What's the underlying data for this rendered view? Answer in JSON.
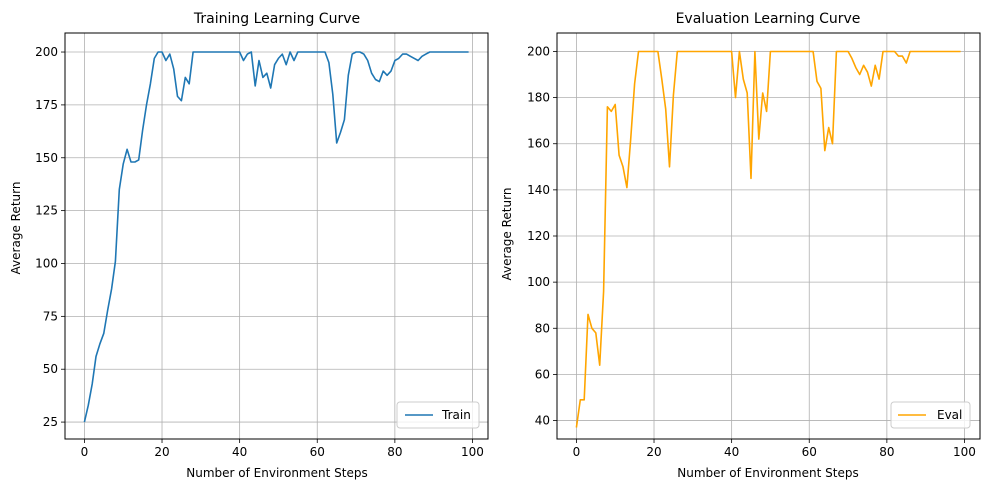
{
  "chart_data": [
    {
      "type": "line",
      "title": "Training Learning Curve",
      "xlabel": "Number of Environment Steps",
      "ylabel": "Average Return",
      "xlim": [
        -5,
        104
      ],
      "ylim": [
        17,
        209
      ],
      "xticks": [
        0,
        20,
        40,
        60,
        80,
        100
      ],
      "yticks": [
        25,
        50,
        75,
        100,
        125,
        150,
        175,
        200
      ],
      "grid": true,
      "legend_position": "lower-right",
      "series": [
        {
          "name": "Train",
          "color": "#1f77b4",
          "x": [
            0,
            1,
            2,
            3,
            4,
            5,
            6,
            7,
            8,
            9,
            10,
            11,
            12,
            13,
            14,
            15,
            16,
            17,
            18,
            19,
            20,
            21,
            22,
            23,
            24,
            25,
            26,
            27,
            28,
            29,
            30,
            31,
            32,
            33,
            34,
            35,
            36,
            37,
            38,
            39,
            40,
            41,
            42,
            43,
            44,
            45,
            46,
            47,
            48,
            49,
            50,
            51,
            52,
            53,
            54,
            55,
            56,
            57,
            58,
            59,
            60,
            61,
            62,
            63,
            64,
            65,
            66,
            67,
            68,
            69,
            70,
            71,
            72,
            73,
            74,
            75,
            76,
            77,
            78,
            79,
            80,
            81,
            82,
            83,
            84,
            85,
            86,
            87,
            88,
            89,
            90,
            91,
            92,
            93,
            94,
            95,
            96,
            97,
            98,
            99
          ],
          "values": [
            25,
            33,
            43,
            56,
            62,
            67,
            78,
            88,
            101,
            135,
            147,
            154,
            148,
            148,
            149,
            163,
            175,
            185,
            197,
            200,
            200,
            196,
            199,
            192,
            179,
            177,
            188,
            185,
            200,
            200,
            200,
            200,
            200,
            200,
            200,
            200,
            200,
            200,
            200,
            200,
            200,
            196,
            199,
            200,
            184,
            196,
            188,
            190,
            183,
            194,
            197,
            199,
            194,
            200,
            196,
            200,
            200,
            200,
            200,
            200,
            200,
            200,
            200,
            195,
            180,
            157,
            162,
            168,
            189,
            199,
            200,
            200,
            199,
            196,
            190,
            187,
            186,
            191,
            189,
            191,
            196,
            197,
            199,
            199,
            198,
            197,
            196,
            198,
            199,
            200,
            200,
            200,
            200,
            200,
            200,
            200,
            200,
            200,
            200,
            200
          ]
        }
      ]
    },
    {
      "type": "line",
      "title": "Evaluation Learning Curve",
      "xlabel": "Number of Environment Steps",
      "ylabel": "Average Return",
      "xlim": [
        -5,
        104
      ],
      "ylim": [
        32,
        208
      ],
      "xticks": [
        0,
        20,
        40,
        60,
        80,
        100
      ],
      "yticks": [
        40,
        60,
        80,
        100,
        120,
        140,
        160,
        180,
        200
      ],
      "grid": true,
      "legend_position": "lower-right",
      "series": [
        {
          "name": "Eval",
          "color": "#ffa500",
          "x": [
            0,
            1,
            2,
            3,
            4,
            5,
            6,
            7,
            8,
            9,
            10,
            11,
            12,
            13,
            14,
            15,
            16,
            17,
            18,
            19,
            20,
            21,
            22,
            23,
            24,
            25,
            26,
            27,
            28,
            29,
            30,
            31,
            32,
            33,
            34,
            35,
            36,
            37,
            38,
            39,
            40,
            41,
            42,
            43,
            44,
            45,
            46,
            47,
            48,
            49,
            50,
            51,
            52,
            53,
            54,
            55,
            56,
            57,
            58,
            59,
            60,
            61,
            62,
            63,
            64,
            65,
            66,
            67,
            68,
            69,
            70,
            71,
            72,
            73,
            74,
            75,
            76,
            77,
            78,
            79,
            80,
            81,
            82,
            83,
            84,
            85,
            86,
            87,
            88,
            89,
            90,
            91,
            92,
            93,
            94,
            95,
            96,
            97,
            98,
            99
          ],
          "values": [
            37,
            49,
            49,
            86,
            80,
            78,
            64,
            96,
            176,
            174,
            177,
            155,
            150,
            141,
            162,
            186,
            200,
            200,
            200,
            200,
            200,
            200,
            188,
            175,
            150,
            181,
            200,
            200,
            200,
            200,
            200,
            200,
            200,
            200,
            200,
            200,
            200,
            200,
            200,
            200,
            200,
            180,
            200,
            188,
            182,
            145,
            200,
            162,
            182,
            174,
            200,
            200,
            200,
            200,
            200,
            200,
            200,
            200,
            200,
            200,
            200,
            200,
            187,
            184,
            157,
            167,
            160,
            200,
            200,
            200,
            200,
            197,
            193,
            190,
            194,
            191,
            185,
            194,
            188,
            200,
            200,
            200,
            200,
            198,
            198,
            195,
            200,
            200,
            200,
            200,
            200,
            200,
            200,
            200,
            200,
            200,
            200,
            200,
            200,
            200
          ]
        }
      ]
    }
  ]
}
